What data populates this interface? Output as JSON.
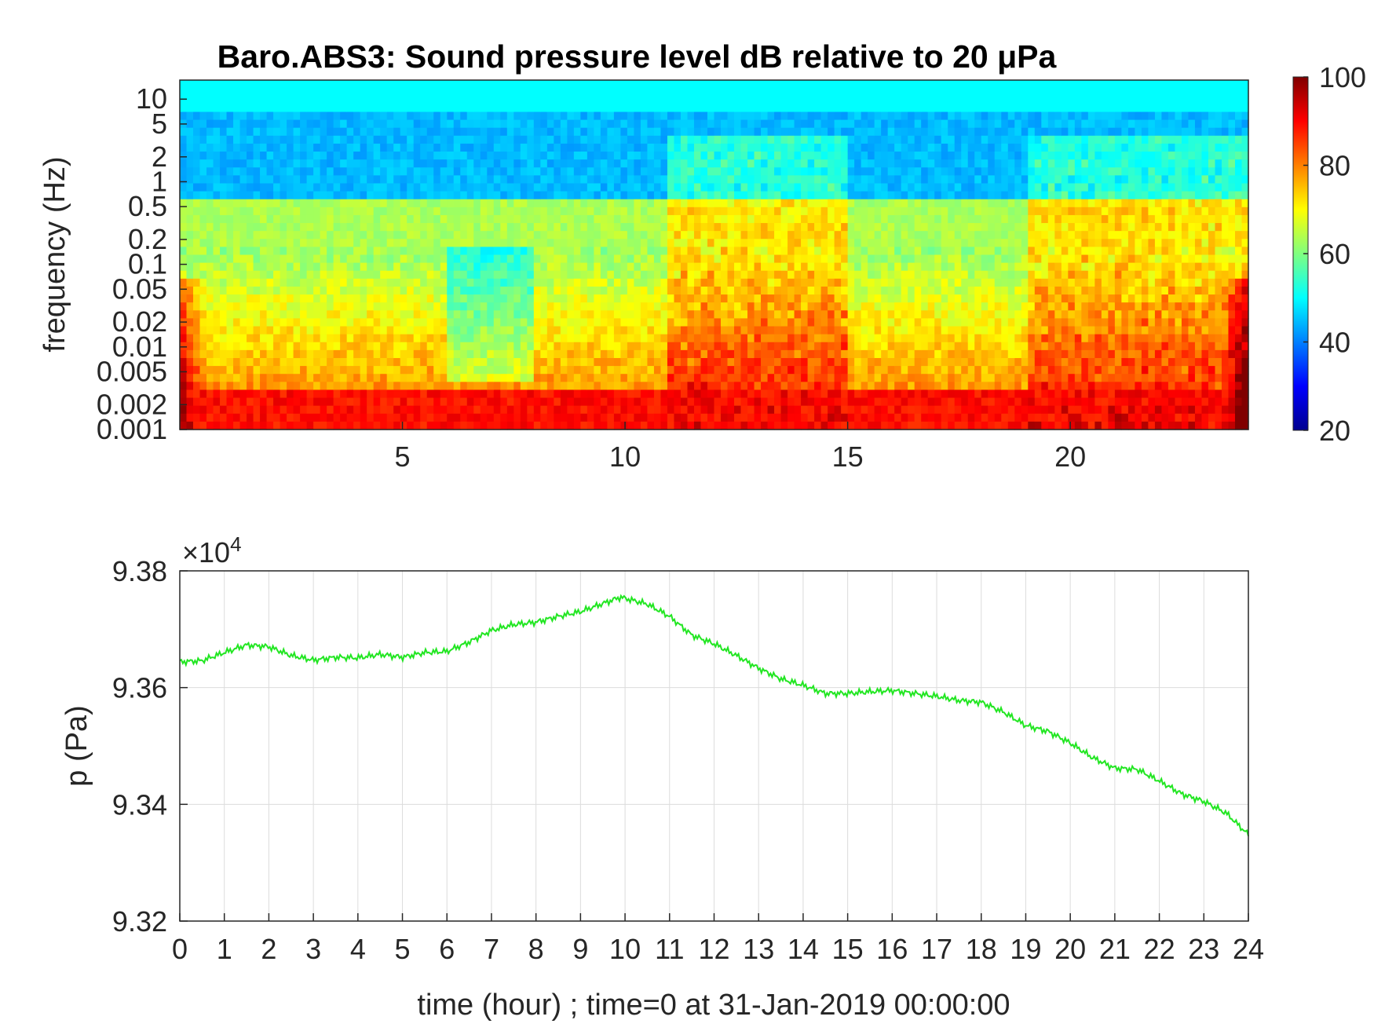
{
  "chart_data": [
    {
      "type": "heatmap",
      "title": "Baro.ABS3: Sound pressure level dB relative to 20 μPa",
      "ylabel": "frequency (Hz)",
      "xlabel": "",
      "y_scale": "log",
      "y_ticks": [
        "10",
        "5",
        "2",
        "1",
        "0.5",
        "0.2",
        "0.1",
        "0.05",
        "0.02",
        "0.01",
        "0.005",
        "0.002",
        "0.001"
      ],
      "y_tick_values": [
        10,
        5,
        2,
        1,
        0.5,
        0.2,
        0.1,
        0.05,
        0.02,
        0.01,
        0.005,
        0.002,
        0.001
      ],
      "x_ticks": [
        "5",
        "10",
        "15",
        "20"
      ],
      "x_tick_values": [
        5,
        10,
        15,
        20
      ],
      "xlim": [
        0,
        24
      ],
      "colorbar": {
        "colormap": "jet",
        "range": [
          20,
          100
        ],
        "ticks": [
          "100",
          "80",
          "60",
          "40",
          "20"
        ],
        "tick_values": [
          100,
          80,
          60,
          40,
          20
        ]
      },
      "loud_periods_hours": [
        [
          11,
          15
        ],
        [
          19,
          24
        ]
      ],
      "quiet_periods_hours": [
        [
          6,
          8
        ]
      ]
    },
    {
      "type": "line",
      "xlabel": "time (hour) ; time=0 at 31-Jan-2019 00:00:00",
      "ylabel": "p (Pa)",
      "y_exponent_label": "×10",
      "y_exponent": "4",
      "ylim": [
        9.32,
        9.38
      ],
      "xlim": [
        0,
        24
      ],
      "y_ticks": [
        "9.38",
        "9.36",
        "9.34",
        "9.32"
      ],
      "y_tick_values": [
        9.38,
        9.36,
        9.34,
        9.32
      ],
      "x_ticks": [
        "0",
        "1",
        "2",
        "3",
        "4",
        "5",
        "6",
        "7",
        "8",
        "9",
        "10",
        "11",
        "12",
        "13",
        "14",
        "15",
        "16",
        "17",
        "18",
        "19",
        "20",
        "21",
        "22",
        "23",
        "24"
      ],
      "grid": true,
      "line_color": "#22e622",
      "series": [
        {
          "x": [
            0,
            0.5,
            1,
            1.5,
            2,
            2.5,
            3,
            3.5,
            4,
            4.5,
            5,
            5.5,
            6,
            6.5,
            7,
            7.5,
            8,
            8.5,
            9,
            9.5,
            9.9,
            10.5,
            11,
            11.5,
            12,
            12.5,
            13,
            13.5,
            14,
            14.5,
            15,
            15.5,
            16,
            16.5,
            17,
            17.5,
            18,
            18.5,
            19,
            19.5,
            20,
            20.5,
            21,
            21.5,
            22,
            22.5,
            23,
            23.5,
            24
          ],
          "y": [
            9.3644,
            9.3646,
            9.366,
            9.3673,
            9.367,
            9.3655,
            9.3647,
            9.3652,
            9.3651,
            9.3657,
            9.3652,
            9.366,
            9.3662,
            9.3678,
            9.3698,
            9.3708,
            9.3712,
            9.3722,
            9.373,
            9.3744,
            9.3755,
            9.3743,
            9.3722,
            9.369,
            9.3675,
            9.3655,
            9.3633,
            9.3615,
            9.3604,
            9.359,
            9.359,
            9.3593,
            9.3595,
            9.359,
            9.3585,
            9.3578,
            9.3575,
            9.3558,
            9.3535,
            9.3525,
            9.3505,
            9.348,
            9.3462,
            9.346,
            9.344,
            9.3418,
            9.3405,
            9.3385,
            9.3348
          ]
        }
      ]
    }
  ]
}
